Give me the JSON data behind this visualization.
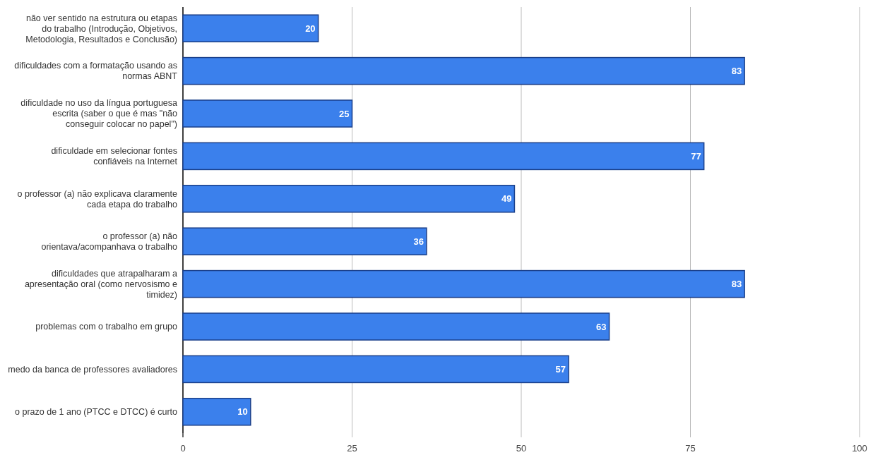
{
  "chart_data": {
    "type": "bar",
    "orientation": "horizontal",
    "categories": [
      "não ver sentido na estrutura ou etapas do trabalho (Introdução, Objetivos, Metodologia, Resultados e Conclusão)",
      "dificuldades com a formatação usando as normas ABNT",
      "dificuldade no uso da língua portuguesa escrita (saber o que é mas \"não conseguir colocar no papel\")",
      "dificuldade em selecionar fontes confiáveis na Internet",
      "o professor (a) não explicava claramente cada etapa do trabalho",
      "o professor (a) não orientava/acompanhava o trabalho",
      "dificuldades que atrapalharam a apresentação oral (como nervosismo e timidez)",
      "problemas com o trabalho em grupo",
      "medo da banca de professores avaliadores",
      "o prazo de 1 ano (PTCC e DTCC) é curto"
    ],
    "values": [
      20,
      83,
      25,
      77,
      49,
      36,
      83,
      63,
      57,
      10
    ],
    "color": "#3b80ec",
    "xlim": [
      0,
      100
    ],
    "xticks": [
      0,
      25,
      50,
      75,
      100
    ],
    "grid": "x",
    "data_labels": true
  }
}
